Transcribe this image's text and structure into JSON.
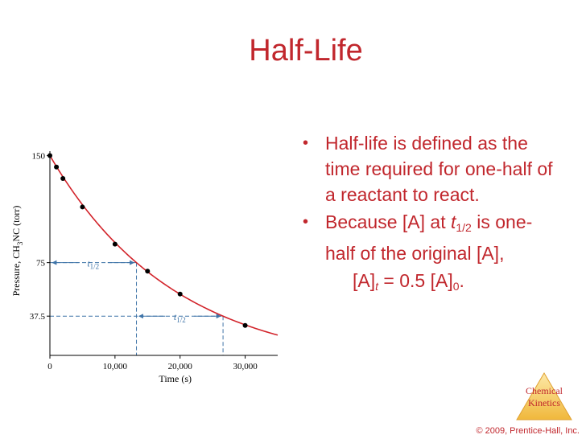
{
  "slide": {
    "title": "Half-Life",
    "bullets": [
      {
        "text": "Half-life is defined as the time required for one-half of a reactant to react."
      },
      {
        "prefix": "Because [A] at ",
        "t_italic": "t",
        "t_sub": "1/2",
        "suffix_1": " is one-half of the original [A],"
      }
    ],
    "formula": {
      "lhs": "[A]",
      "lhs_sub": "t",
      "rhs": " = 0.5 [A]",
      "rhs_sub": "0",
      "end": "."
    },
    "badge": {
      "line1": "Chemical",
      "line2": "Kinetics"
    },
    "copyright": "© 2009, Prentice-Hall, Inc."
  },
  "colors": {
    "accent": "#c1272d",
    "curve": "#d2232a",
    "guide": "#3f74a8",
    "badge_fill": "#f7c65a",
    "badge_text": "#c1272d"
  },
  "chart_data": {
    "type": "line",
    "xlabel": "Time (s)",
    "ylabel_main": "Pressure, CH",
    "ylabel_sub": "3",
    "ylabel_end": "NC (torr)",
    "xlim": [
      0,
      35000
    ],
    "ylim": [
      10,
      152
    ],
    "x_ticks": [
      {
        "value": 0,
        "label": "0"
      },
      {
        "value": 10000,
        "label": "10,000"
      },
      {
        "value": 20000,
        "label": "20,000"
      },
      {
        "value": 30000,
        "label": "30,000"
      }
    ],
    "y_ticks": [
      {
        "value": 150,
        "label": "150"
      },
      {
        "value": 75,
        "label": "75"
      },
      {
        "value": 37.5,
        "label": "37.5"
      }
    ],
    "curve": {
      "initial": 150,
      "half_life": 13300
    },
    "points": [
      {
        "x": 0,
        "y": 150
      },
      {
        "x": 1000,
        "y": 142
      },
      {
        "x": 2000,
        "y": 134
      },
      {
        "x": 5000,
        "y": 114
      },
      {
        "x": 10000,
        "y": 88
      },
      {
        "x": 15000,
        "y": 69
      },
      {
        "x": 20000,
        "y": 53
      },
      {
        "x": 30000,
        "y": 31
      }
    ],
    "half_life_markers": [
      {
        "label_t": "t",
        "label_sub": "1/2",
        "y": 75,
        "x_start": 0,
        "x_end": 13300
      },
      {
        "label_t": "t",
        "label_sub": "1/2",
        "y": 37.5,
        "x_start": 13300,
        "x_end": 26600
      }
    ]
  }
}
